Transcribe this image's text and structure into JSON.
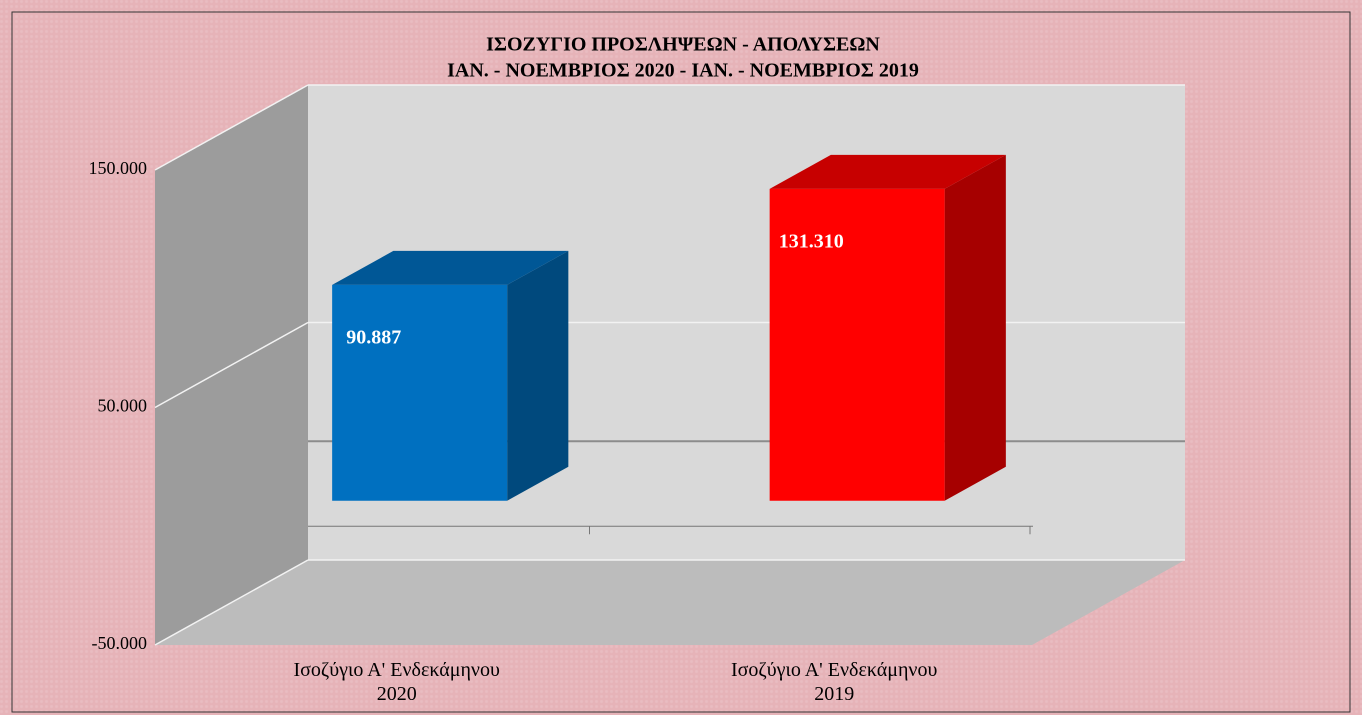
{
  "chart_data": {
    "type": "bar3d",
    "title": [
      "ΙΣΟΖΥΓΙΟ  ΠΡΟΣΛΗΨΕΩΝ  -  ΑΠΟΛΥΣΕΩΝ",
      "ΙΑΝ. - ΝΟΕΜΒΡΙΟΣ 2020  -  ΙΑΝ. - ΝΟΕΜΒΡΙΟΣ 2019"
    ],
    "categories": [
      "Ισοζύγιο Α' Ενδεκάμηνου 2020",
      "Ισοζύγιο Α' Ενδεκάμηνου 2019"
    ],
    "values": [
      90887,
      131310
    ],
    "value_labels": [
      "90.887",
      "131.310"
    ],
    "colors": [
      "#0070c0",
      "#ff0000"
    ],
    "ylim": [
      -50000,
      150000
    ],
    "yticks": [
      {
        "value": -50000,
        "label": "-50.000"
      },
      {
        "value": 50000,
        "label": "50.000"
      },
      {
        "value": 150000,
        "label": "150.000"
      }
    ],
    "grid": true
  }
}
